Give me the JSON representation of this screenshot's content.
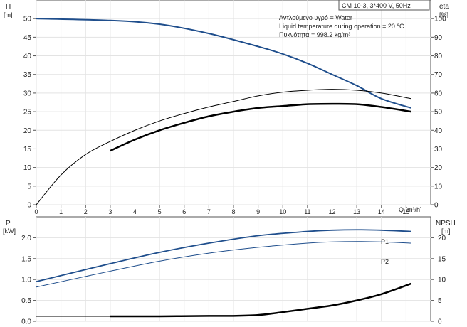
{
  "chart_data": [
    {
      "type": "line",
      "title_box": "CM 10-3, 3*400 V, 50Hz",
      "info": [
        "Αντλούμενο υγρό = Water",
        "Liquid temperature during operation = 20 °C",
        "Πυκνότητα = 998.2 kg/m³"
      ],
      "ylabel_left": [
        "H",
        "[m]"
      ],
      "ylabel_right": [
        "eta",
        "[%]"
      ],
      "xlabel": "Q [m³/h]",
      "xlim": [
        0,
        16
      ],
      "ylim_left": [
        0,
        55
      ],
      "ylim_right": [
        0,
        110
      ],
      "x_ticks": [
        0,
        1,
        2,
        3,
        4,
        5,
        6,
        7,
        8,
        9,
        10,
        11,
        12,
        13,
        14,
        15
      ],
      "y_ticks_left": [
        0,
        5,
        10,
        15,
        20,
        25,
        30,
        35,
        40,
        45,
        50
      ],
      "y_ticks_right": [
        0,
        10,
        20,
        30,
        40,
        50,
        60,
        70,
        80,
        90,
        100
      ],
      "series": [
        {
          "axis": "left",
          "color": "#1f4e8c",
          "width": 2,
          "x": [
            0,
            3,
            5,
            7,
            9,
            10,
            11,
            12,
            13,
            14,
            15.2
          ],
          "y": [
            50,
            49.5,
            48.5,
            46,
            42.5,
            40.5,
            38,
            35,
            32,
            28.5,
            26
          ]
        },
        {
          "axis": "right",
          "color": "#000000",
          "width": 1,
          "x": [
            0,
            1,
            2,
            3,
            4,
            5,
            6,
            7,
            8,
            9,
            10,
            11,
            12,
            13,
            14,
            15.2
          ],
          "y": [
            0,
            16,
            27,
            34,
            40,
            45,
            49,
            52.5,
            55.5,
            58.5,
            60.5,
            61.5,
            62,
            61.5,
            60,
            57
          ]
        },
        {
          "axis": "right",
          "color": "#000000",
          "width": 2.5,
          "x": [
            3,
            4,
            5,
            6,
            7,
            8,
            9,
            10,
            11,
            12,
            13,
            14,
            15.2
          ],
          "y": [
            29,
            35,
            40,
            44,
            47.5,
            50,
            52,
            53,
            54,
            54.2,
            54,
            52.5,
            50
          ]
        }
      ]
    },
    {
      "type": "line",
      "ylabel_left": [
        "P",
        "[kW]"
      ],
      "ylabel_right": [
        "NPSH",
        "[m]"
      ],
      "xlim": [
        0,
        16
      ],
      "ylim_left": [
        0,
        2.5
      ],
      "ylim_right": [
        0,
        25
      ],
      "y_ticks_left": [
        "0.0",
        "0.5",
        "1.0",
        "1.5",
        "2.0"
      ],
      "y_ticks_right": [
        0,
        5,
        10,
        15,
        20
      ],
      "series": [
        {
          "name": "P1",
          "axis": "left",
          "color": "#1f4e8c",
          "width": 1.8,
          "x": [
            0,
            3,
            5,
            7,
            9,
            11,
            12,
            13,
            14,
            15.2
          ],
          "y": [
            0.95,
            1.38,
            1.65,
            1.87,
            2.05,
            2.15,
            2.18,
            2.19,
            2.18,
            2.15
          ]
        },
        {
          "name": "P2",
          "axis": "left",
          "color": "#1f4e8c",
          "width": 1,
          "x": [
            0,
            3,
            5,
            7,
            9,
            11,
            12,
            13,
            14,
            15.2
          ],
          "y": [
            0.82,
            1.2,
            1.44,
            1.63,
            1.77,
            1.87,
            1.9,
            1.91,
            1.9,
            1.87
          ]
        },
        {
          "axis": "right",
          "color": "#000000",
          "width": 1.2,
          "x": [
            0,
            3
          ],
          "y": [
            1.2,
            1.2
          ]
        },
        {
          "axis": "right",
          "color": "#000000",
          "width": 2.5,
          "x": [
            3,
            5,
            7,
            8,
            9,
            10,
            11,
            12,
            13,
            14,
            15.2
          ],
          "y": [
            1.2,
            1.2,
            1.3,
            1.3,
            1.5,
            2.2,
            3,
            3.8,
            5,
            6.5,
            9
          ]
        }
      ]
    }
  ]
}
